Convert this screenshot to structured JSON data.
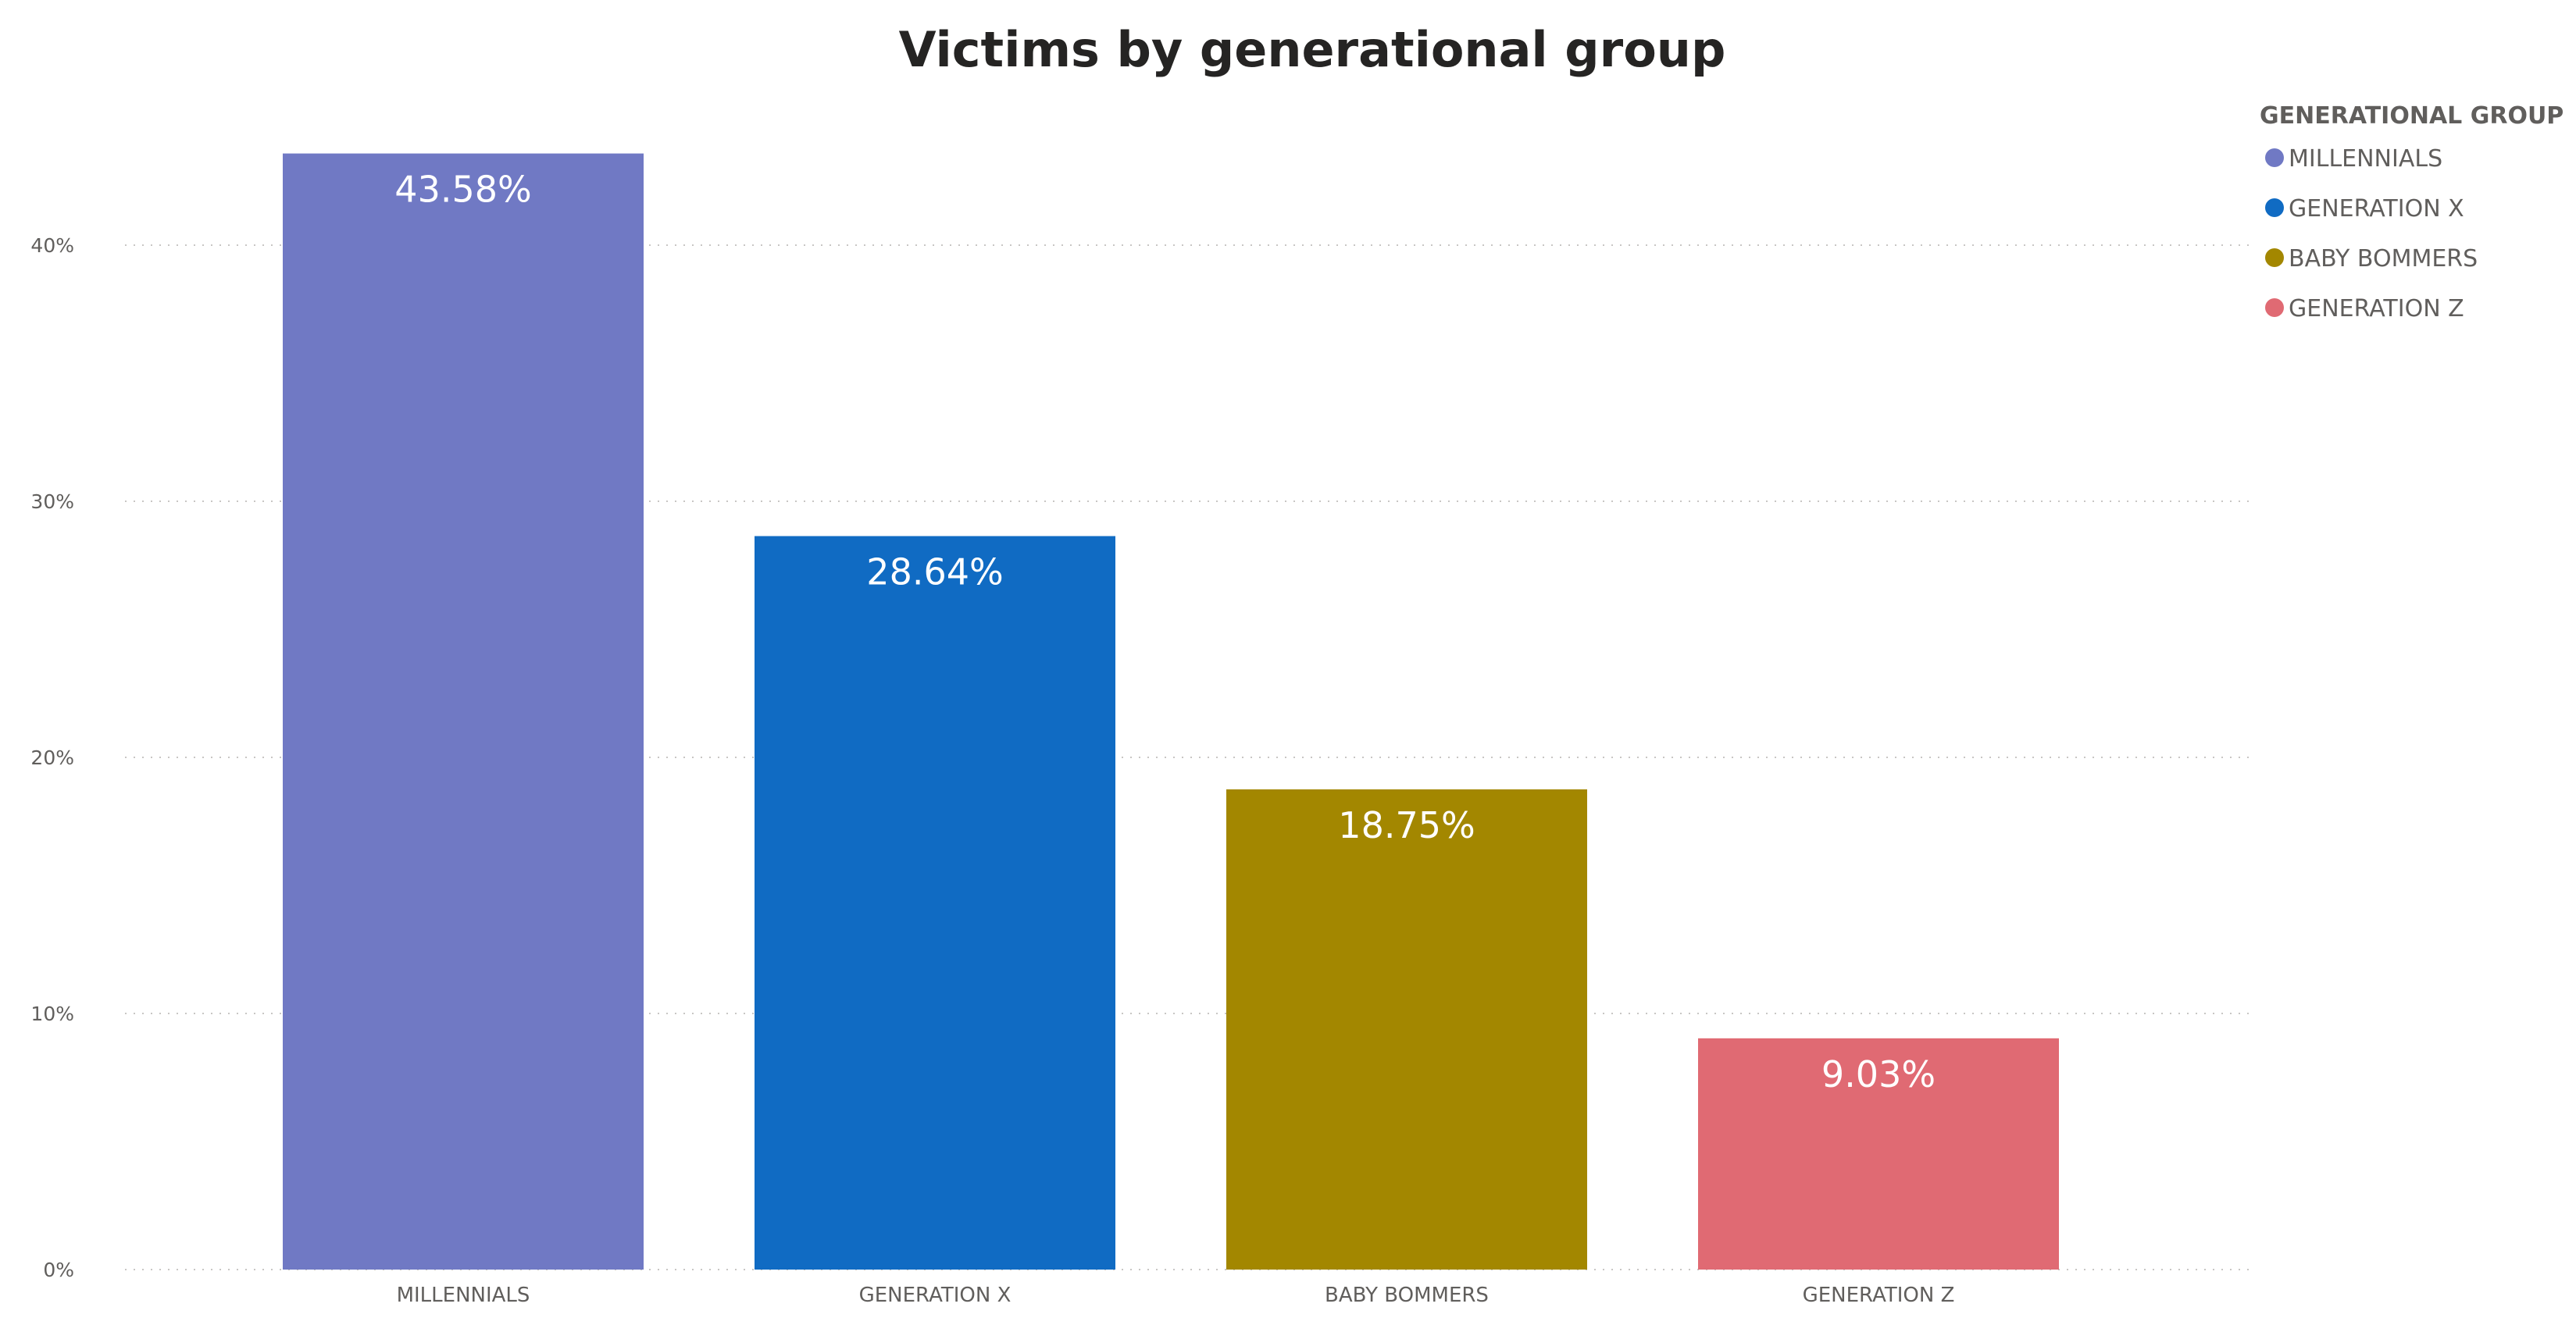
{
  "chart_data": {
    "type": "bar",
    "title": "Victims by generational group",
    "xlabel": "",
    "ylabel": "",
    "ylim": [
      0,
      44
    ],
    "y_ticks": [
      0,
      10,
      20,
      30,
      40
    ],
    "y_tick_labels": [
      "0%",
      "10%",
      "20%",
      "30%",
      "40%"
    ],
    "grid": true,
    "legend_position": "top-right",
    "legend_title": "GENERATIONAL GROUP",
    "categories": [
      "MILLENNIALS",
      "GENERATION X",
      "BABY BOMMERS",
      "GENERATION Z"
    ],
    "values": [
      43.58,
      28.64,
      18.75,
      9.03
    ],
    "data_labels": [
      "43.58%",
      "28.64%",
      "18.75%",
      "9.03%"
    ],
    "colors": [
      "#7079c4",
      "#106bc3",
      "#a38700",
      "#e06a73"
    ],
    "legend_entries": [
      "MILLENNIALS",
      "GENERATION X",
      "BABY BOMMERS",
      "GENERATION Z"
    ]
  }
}
